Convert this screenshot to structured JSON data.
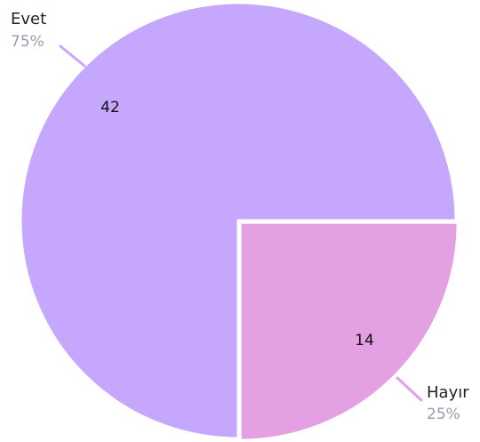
{
  "chart_data": {
    "type": "pie",
    "title": "",
    "slices": [
      {
        "label": "Evet",
        "value": 42,
        "percent": "75%",
        "color": "#c5a7fe"
      },
      {
        "label": "Hayır",
        "value": 14,
        "percent": "25%",
        "color": "#e3a0e3"
      }
    ],
    "start_angle": "3 o'clock",
    "direction": "clockwise-from-start for Hayır, remaining for Evet",
    "legend": "none",
    "exploded_slice": "Hayır",
    "slice_border_color": "#ffffff"
  }
}
